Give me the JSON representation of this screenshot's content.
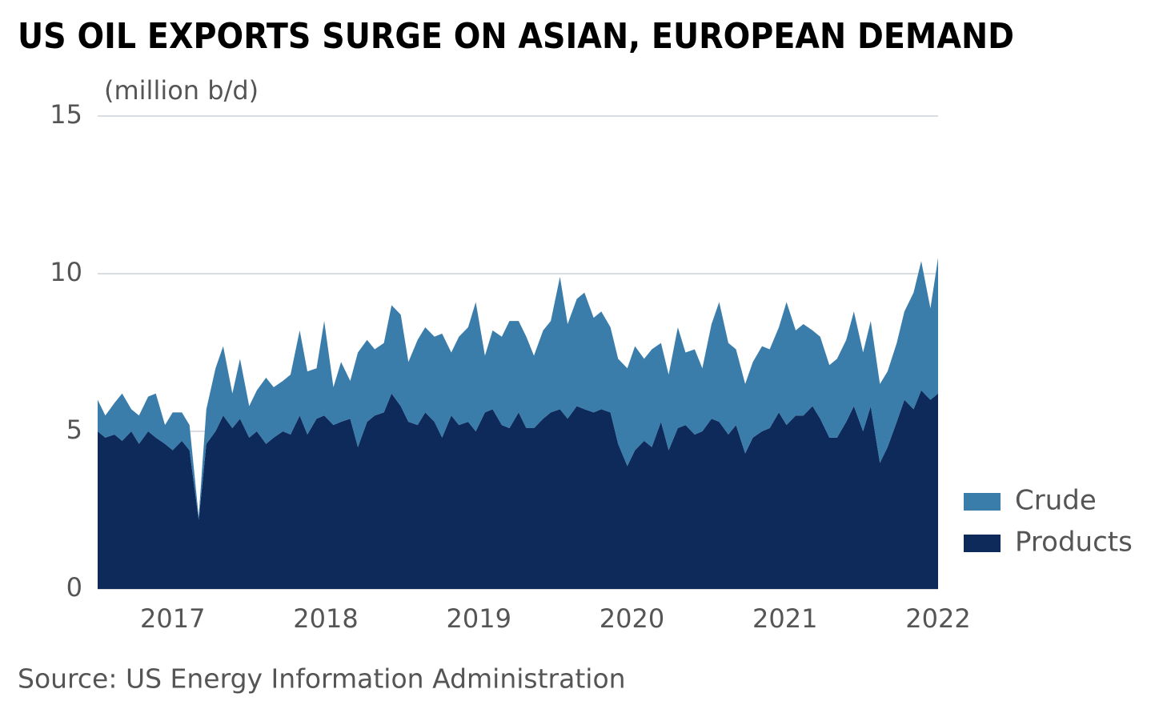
{
  "chart_data": {
    "type": "stacked_area",
    "title": "US OIL EXPORTS SURGE ON ASIAN, EUROPEAN DEMAND",
    "y_label": "(million b/d)",
    "source": "Source: US Energy Information Administration",
    "x": [
      2016.51,
      2016.56,
      2016.62,
      2016.67,
      2016.73,
      2016.78,
      2016.84,
      2016.89,
      2016.95,
      2017.0,
      2017.06,
      2017.11,
      2017.17,
      2017.22,
      2017.28,
      2017.33,
      2017.39,
      2017.44,
      2017.5,
      2017.55,
      2017.61,
      2017.66,
      2017.72,
      2017.77,
      2017.83,
      2017.88,
      2017.94,
      2017.99,
      2018.05,
      2018.1,
      2018.16,
      2018.21,
      2018.27,
      2018.32,
      2018.38,
      2018.43,
      2018.49,
      2018.54,
      2018.6,
      2018.65,
      2018.71,
      2018.76,
      2018.82,
      2018.87,
      2018.93,
      2018.98,
      2019.04,
      2019.09,
      2019.15,
      2019.2,
      2019.26,
      2019.31,
      2019.36,
      2019.42,
      2019.47,
      2019.53,
      2019.58,
      2019.64,
      2019.69,
      2019.75,
      2019.8,
      2019.86,
      2019.91,
      2019.97,
      2020.02,
      2020.08,
      2020.13,
      2020.19,
      2020.24,
      2020.3,
      2020.35,
      2020.41,
      2020.46,
      2020.52,
      2020.57,
      2020.63,
      2020.68,
      2020.74,
      2020.79,
      2020.85,
      2020.9,
      2020.96,
      2021.01,
      2021.07,
      2021.12,
      2021.18,
      2021.23,
      2021.29,
      2021.34,
      2021.4,
      2021.45,
      2021.51,
      2021.56,
      2021.62,
      2021.67,
      2021.73,
      2021.78,
      2021.84,
      2021.89,
      2021.95,
      2022.0
    ],
    "series": [
      {
        "name": "Crude",
        "color": "#3a7dab",
        "values": [
          1.0,
          0.7,
          1.0,
          1.5,
          0.7,
          0.9,
          1.1,
          1.4,
          0.6,
          1.2,
          0.9,
          0.8,
          0.1,
          1.1,
          2.0,
          2.2,
          1.1,
          1.9,
          1.0,
          1.3,
          2.1,
          1.6,
          1.6,
          1.9,
          2.7,
          2.0,
          1.6,
          3.0,
          1.2,
          1.9,
          1.2,
          3.0,
          2.6,
          2.1,
          2.2,
          2.8,
          2.9,
          1.9,
          2.7,
          2.7,
          2.7,
          3.3,
          2.0,
          2.8,
          3.0,
          4.1,
          1.8,
          2.5,
          2.8,
          3.4,
          2.9,
          2.9,
          2.3,
          2.8,
          2.9,
          4.2,
          3.0,
          3.4,
          3.7,
          3.0,
          3.1,
          2.7,
          2.7,
          3.1,
          3.3,
          2.6,
          3.1,
          2.5,
          2.4,
          3.2,
          2.3,
          2.7,
          2.0,
          3.0,
          3.8,
          2.9,
          2.4,
          2.2,
          2.4,
          2.7,
          2.5,
          2.7,
          3.9,
          2.7,
          2.9,
          2.4,
          2.6,
          2.3,
          2.5,
          2.6,
          3.0,
          2.5,
          2.7,
          2.5,
          2.4,
          2.5,
          2.8,
          3.7,
          4.1,
          2.9,
          4.3
        ]
      },
      {
        "name": "Products",
        "color": "#0e2a5b",
        "values": [
          5.0,
          4.8,
          4.9,
          4.7,
          5.0,
          4.6,
          5.0,
          4.8,
          4.6,
          4.4,
          4.7,
          4.4,
          2.2,
          4.6,
          5.0,
          5.5,
          5.1,
          5.4,
          4.8,
          5.0,
          4.6,
          4.8,
          5.0,
          4.9,
          5.5,
          4.9,
          5.4,
          5.5,
          5.2,
          5.3,
          5.4,
          4.5,
          5.3,
          5.5,
          5.6,
          6.2,
          5.8,
          5.3,
          5.2,
          5.6,
          5.3,
          4.8,
          5.5,
          5.2,
          5.3,
          5.0,
          5.6,
          5.7,
          5.2,
          5.1,
          5.6,
          5.1,
          5.1,
          5.4,
          5.6,
          5.7,
          5.4,
          5.8,
          5.7,
          5.6,
          5.7,
          5.6,
          4.6,
          3.9,
          4.4,
          4.7,
          4.5,
          5.3,
          4.4,
          5.1,
          5.2,
          4.9,
          5.0,
          5.4,
          5.3,
          4.9,
          5.2,
          4.3,
          4.8,
          5.0,
          5.1,
          5.6,
          5.2,
          5.5,
          5.5,
          5.8,
          5.4,
          4.8,
          4.8,
          5.3,
          5.8,
          5.0,
          5.8,
          4.0,
          4.5,
          5.3,
          6.0,
          5.7,
          6.3,
          6.0,
          6.2
        ]
      }
    ],
    "xlim": [
      2016.51,
      2022.0
    ],
    "xticks": [
      2017,
      2018,
      2019,
      2020,
      2021,
      2022
    ],
    "ylim": [
      0,
      15
    ],
    "yticks": [
      0,
      5,
      10,
      15
    ],
    "grid": true,
    "legend": "right"
  }
}
